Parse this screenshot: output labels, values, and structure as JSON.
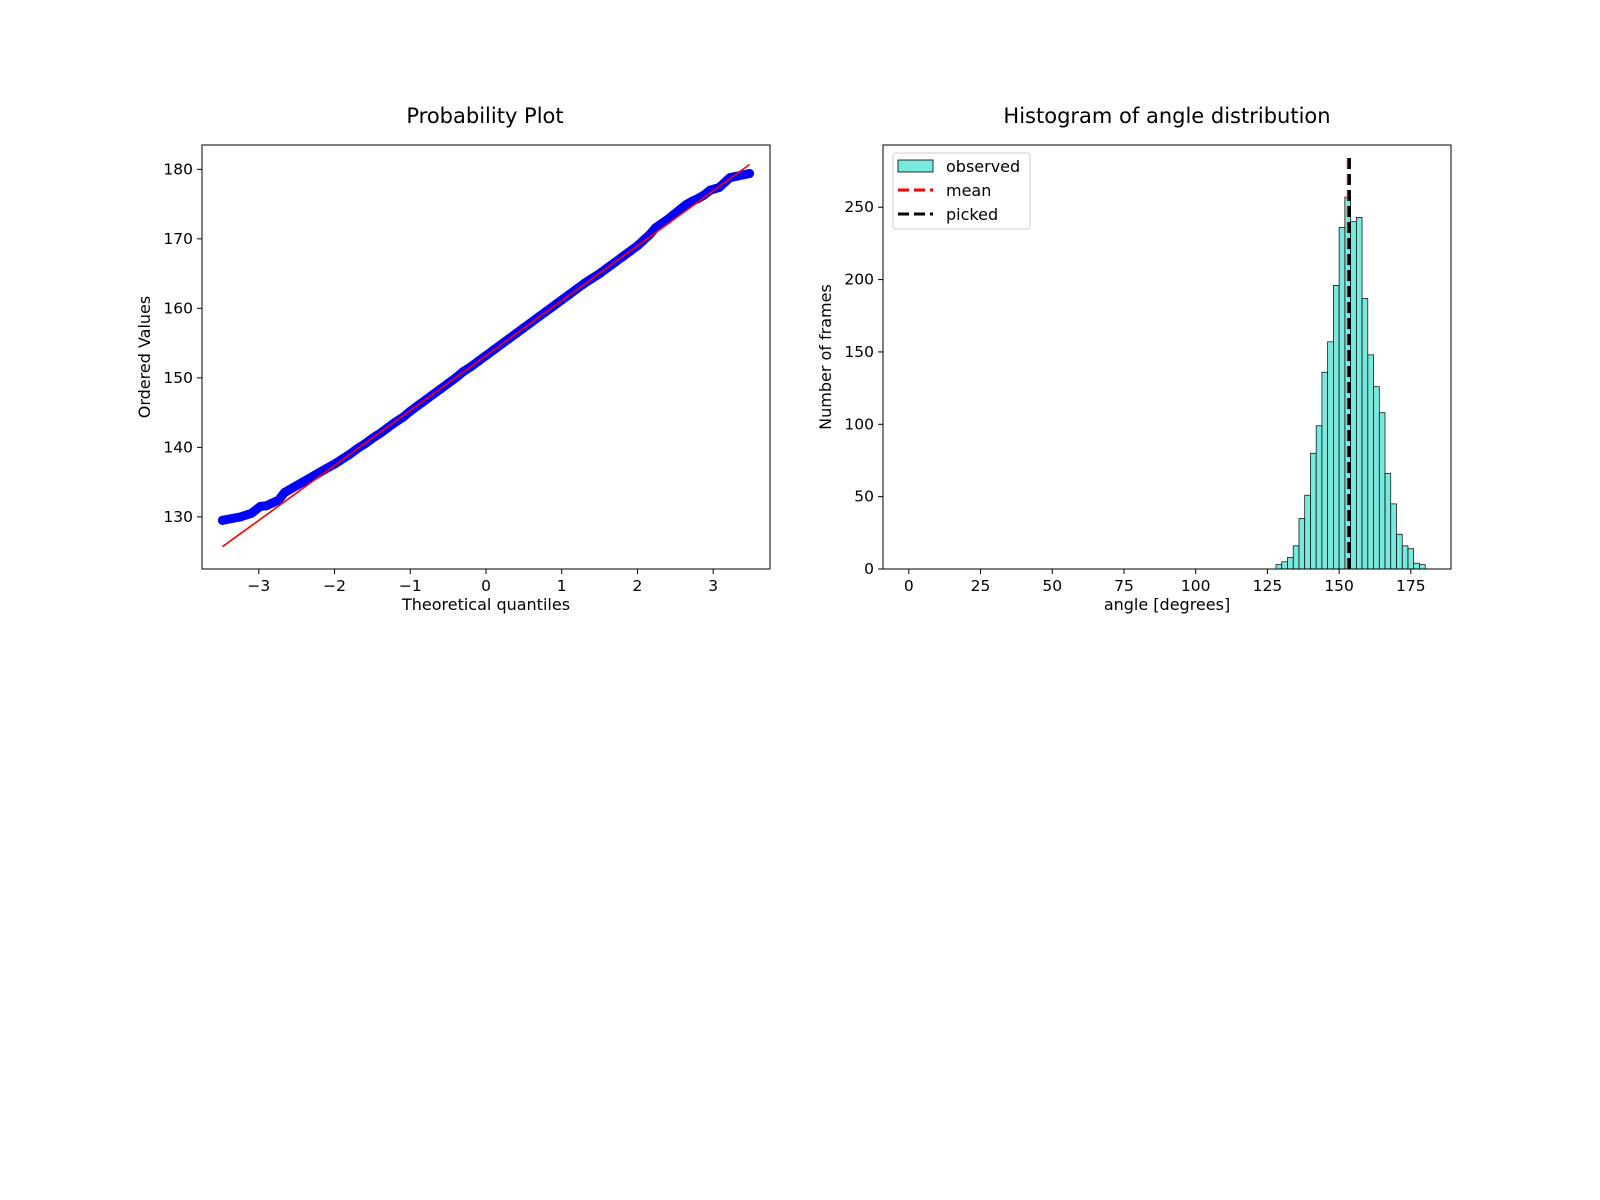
{
  "chart_data": [
    {
      "type": "scatter",
      "title": "Probability Plot",
      "xlabel": "Theoretical quantiles",
      "ylabel": "Ordered Values",
      "xlim": [
        -3.75,
        3.75
      ],
      "ylim": [
        122.5,
        183.5
      ],
      "xticks": [
        -3,
        -2,
        -1,
        0,
        1,
        2,
        3
      ],
      "xtick_labels": [
        "−3",
        "−2",
        "−1",
        "0",
        "1",
        "2",
        "3"
      ],
      "yticks": [
        130,
        140,
        150,
        160,
        170,
        180
      ],
      "ytick_labels": [
        "130",
        "140",
        "150",
        "160",
        "170",
        "180"
      ],
      "marker_color": "#0000ff",
      "fit_line_color": "#ff0000",
      "fit_line": {
        "slope": 7.9,
        "intercept": 153.2,
        "x_range": [
          -3.48,
          3.48
        ]
      },
      "points": [
        [
          -3.48,
          129.5
        ],
        [
          -3.24,
          130.0
        ],
        [
          -3.1,
          130.5
        ],
        [
          -2.98,
          131.5
        ],
        [
          -2.9,
          131.6
        ],
        [
          -2.82,
          132.0
        ],
        [
          -2.74,
          132.4
        ],
        [
          -2.66,
          133.5
        ],
        [
          -2.58,
          134.0
        ],
        [
          -2.5,
          134.5
        ],
        [
          -2.42,
          135.0
        ],
        [
          -2.34,
          135.5
        ],
        [
          -2.26,
          136.0
        ],
        [
          -2.18,
          136.5
        ],
        [
          -2.1,
          137.0
        ],
        [
          -2.0,
          137.6
        ],
        [
          -1.9,
          138.3
        ],
        [
          -1.8,
          139.0
        ],
        [
          -1.7,
          139.8
        ],
        [
          -1.6,
          140.5
        ],
        [
          -1.5,
          141.3
        ],
        [
          -1.4,
          142.0
        ],
        [
          -1.3,
          142.8
        ],
        [
          -1.2,
          143.6
        ],
        [
          -1.1,
          144.3
        ],
        [
          -1.0,
          145.2
        ],
        [
          -0.9,
          146.0
        ],
        [
          -0.8,
          146.8
        ],
        [
          -0.7,
          147.6
        ],
        [
          -0.6,
          148.4
        ],
        [
          -0.5,
          149.2
        ],
        [
          -0.4,
          150.0
        ],
        [
          -0.3,
          150.9
        ],
        [
          -0.2,
          151.6
        ],
        [
          -0.1,
          152.4
        ],
        [
          0.0,
          153.2
        ],
        [
          0.1,
          154.0
        ],
        [
          0.2,
          154.8
        ],
        [
          0.3,
          155.6
        ],
        [
          0.4,
          156.4
        ],
        [
          0.5,
          157.2
        ],
        [
          0.6,
          158.0
        ],
        [
          0.7,
          158.8
        ],
        [
          0.8,
          159.6
        ],
        [
          0.9,
          160.4
        ],
        [
          1.0,
          161.2
        ],
        [
          1.1,
          162.0
        ],
        [
          1.2,
          162.8
        ],
        [
          1.3,
          163.6
        ],
        [
          1.4,
          164.3
        ],
        [
          1.5,
          165.0
        ],
        [
          1.6,
          165.8
        ],
        [
          1.7,
          166.6
        ],
        [
          1.8,
          167.4
        ],
        [
          1.9,
          168.2
        ],
        [
          2.0,
          169.0
        ],
        [
          2.08,
          169.8
        ],
        [
          2.16,
          170.6
        ],
        [
          2.24,
          171.6
        ],
        [
          2.32,
          172.2
        ],
        [
          2.4,
          172.8
        ],
        [
          2.48,
          173.5
        ],
        [
          2.56,
          174.2
        ],
        [
          2.64,
          174.9
        ],
        [
          2.72,
          175.4
        ],
        [
          2.8,
          175.8
        ],
        [
          2.88,
          176.3
        ],
        [
          2.96,
          177.0
        ],
        [
          3.08,
          177.4
        ],
        [
          3.22,
          178.8
        ],
        [
          3.48,
          179.4
        ]
      ]
    },
    {
      "type": "bar",
      "title": "Histogram of angle distribution",
      "xlabel": "angle [degrees]",
      "ylabel": "Number of frames",
      "xlim": [
        -9,
        189
      ],
      "ylim": [
        0,
        293
      ],
      "xticks": [
        0,
        25,
        50,
        75,
        100,
        125,
        150,
        175
      ],
      "xtick_labels": [
        "0",
        "25",
        "50",
        "75",
        "100",
        "125",
        "150",
        "175"
      ],
      "yticks": [
        0,
        50,
        100,
        150,
        200,
        250
      ],
      "ytick_labels": [
        "0",
        "50",
        "100",
        "150",
        "200",
        "250"
      ],
      "bar_color": "#40e0d0",
      "bar_edge_color": "#000000",
      "bin_width": 2,
      "bins": [
        [
          128,
          3
        ],
        [
          130,
          5
        ],
        [
          132,
          8
        ],
        [
          134,
          16
        ],
        [
          136,
          35
        ],
        [
          138,
          51
        ],
        [
          140,
          80
        ],
        [
          142,
          99
        ],
        [
          144,
          136
        ],
        [
          146,
          157
        ],
        [
          148,
          196
        ],
        [
          150,
          236
        ],
        [
          152,
          257
        ],
        [
          154,
          240
        ],
        [
          156,
          243
        ],
        [
          158,
          187
        ],
        [
          160,
          148
        ],
        [
          162,
          126
        ],
        [
          164,
          108
        ],
        [
          166,
          66
        ],
        [
          168,
          45
        ],
        [
          170,
          24
        ],
        [
          172,
          16
        ],
        [
          174,
          14
        ],
        [
          176,
          4
        ],
        [
          178,
          3
        ]
      ],
      "mean": 153.2,
      "picked": 153.6,
      "legend": {
        "position": "upper-left",
        "entries": [
          "observed",
          "mean",
          "picked"
        ]
      },
      "colors": {
        "mean": "#ff0000",
        "picked": "#000000"
      }
    }
  ]
}
